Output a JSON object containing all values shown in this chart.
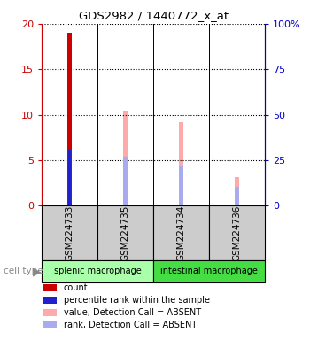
{
  "title": "GDS2982 / 1440772_x_at",
  "samples": [
    "GSM224733",
    "GSM224735",
    "GSM224734",
    "GSM224736"
  ],
  "ylim_left": [
    0,
    20
  ],
  "ylim_right": [
    0,
    100
  ],
  "yticks_left": [
    0,
    5,
    10,
    15,
    20
  ],
  "yticks_right": [
    0,
    25,
    50,
    75,
    100
  ],
  "ytick_labels_left": [
    "0",
    "5",
    "10",
    "15",
    "20"
  ],
  "ytick_labels_right": [
    "0",
    "25",
    "50",
    "75",
    "100%"
  ],
  "count_values": [
    19.0,
    0,
    0,
    0
  ],
  "count_color": "#cc0000",
  "percentile_values": [
    6.2,
    0,
    0,
    0
  ],
  "percentile_color": "#2222cc",
  "value_absent_values": [
    0,
    10.4,
    9.2,
    3.1
  ],
  "value_absent_color": "#ffaaaa",
  "rank_absent_values": [
    0,
    5.4,
    4.3,
    2.1
  ],
  "rank_absent_color": "#aaaaee",
  "thin_bar_width": 0.08,
  "cell_types": [
    {
      "label": "splenic macrophage",
      "samples": [
        0,
        1
      ],
      "color": "#aaffaa"
    },
    {
      "label": "intestinal macrophage",
      "samples": [
        2,
        3
      ],
      "color": "#44dd44"
    }
  ],
  "sample_bg_color": "#cccccc",
  "left_axis_color": "#cc0000",
  "right_axis_color": "#0000cc",
  "legend_items": [
    {
      "color": "#cc0000",
      "label": "count"
    },
    {
      "color": "#2222cc",
      "label": "percentile rank within the sample"
    },
    {
      "color": "#ffaaaa",
      "label": "value, Detection Call = ABSENT"
    },
    {
      "color": "#aaaaee",
      "label": "rank, Detection Call = ABSENT"
    }
  ]
}
